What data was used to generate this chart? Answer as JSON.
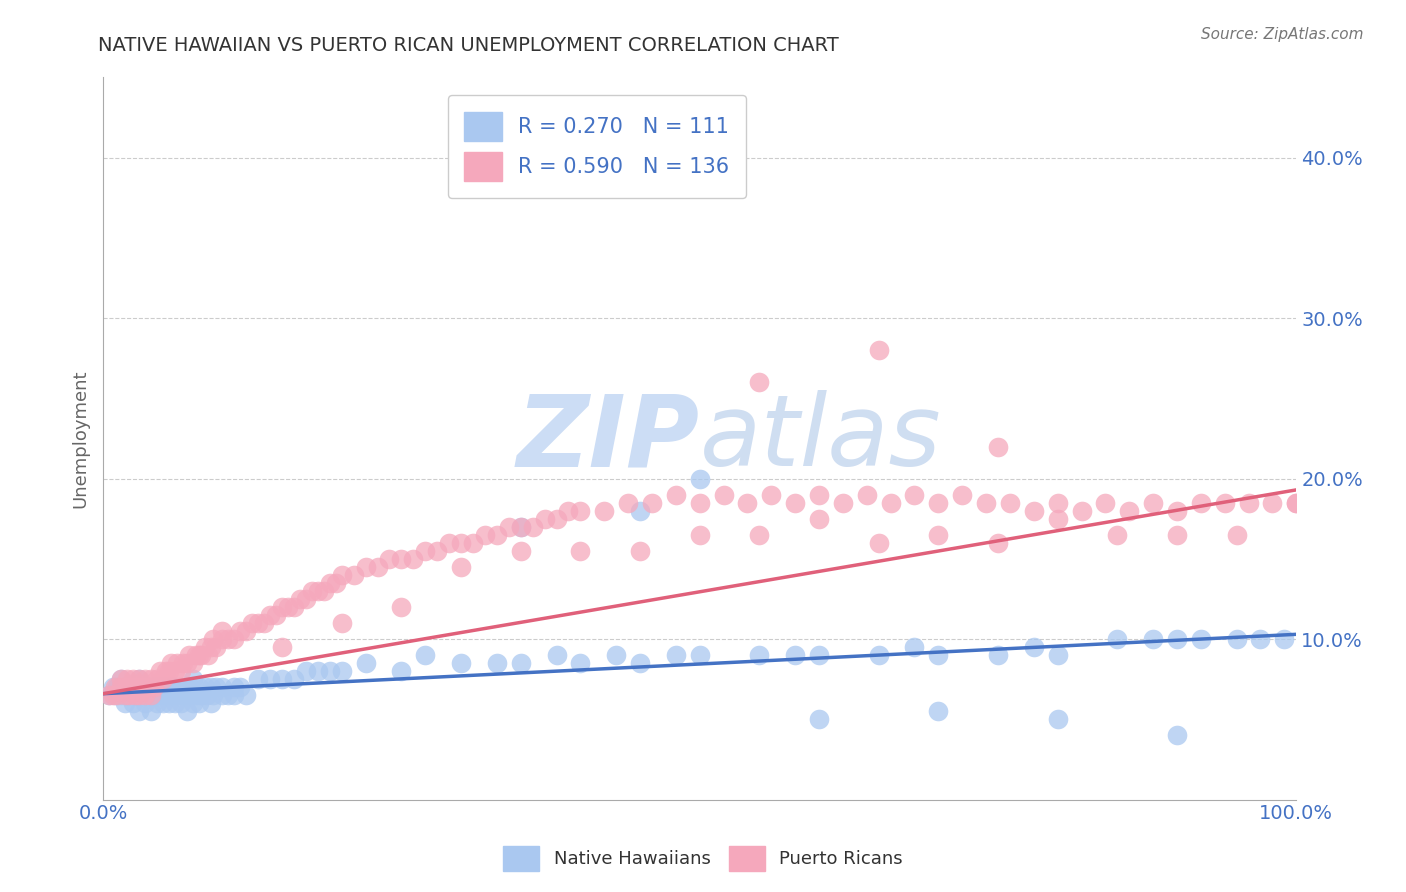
{
  "title": "NATIVE HAWAIIAN VS PUERTO RICAN UNEMPLOYMENT CORRELATION CHART",
  "source": "Source: ZipAtlas.com",
  "ylabel": "Unemployment",
  "xlim": [
    0,
    1.0
  ],
  "ylim": [
    0.0,
    0.45
  ],
  "yticks": [
    0.1,
    0.2,
    0.3,
    0.4
  ],
  "ytick_labels": [
    "10.0%",
    "20.0%",
    "30.0%",
    "40.0%"
  ],
  "xtick_labels": [
    "0.0%",
    "",
    "",
    "",
    "",
    "",
    "",
    "",
    "",
    "",
    "100.0%"
  ],
  "blue_color": "#aac8f0",
  "pink_color": "#f5a8bc",
  "blue_line_color": "#4472c4",
  "pink_line_color": "#e0607a",
  "R_blue": 0.27,
  "N_blue": 111,
  "R_pink": 0.59,
  "N_pink": 136,
  "title_color": "#333333",
  "axis_label_color": "#4472c4",
  "watermark_color": "#ccddf5",
  "blue_line_start_y": 0.066,
  "blue_line_end_y": 0.103,
  "pink_line_start_y": 0.066,
  "pink_line_end_y": 0.193,
  "blue_x": [
    0.005,
    0.008,
    0.01,
    0.012,
    0.015,
    0.015,
    0.018,
    0.02,
    0.02,
    0.022,
    0.025,
    0.025,
    0.027,
    0.03,
    0.03,
    0.03,
    0.032,
    0.033,
    0.035,
    0.035,
    0.038,
    0.04,
    0.04,
    0.042,
    0.043,
    0.045,
    0.045,
    0.047,
    0.048,
    0.05,
    0.05,
    0.052,
    0.053,
    0.055,
    0.055,
    0.057,
    0.058,
    0.06,
    0.06,
    0.062,
    0.063,
    0.065,
    0.065,
    0.067,
    0.068,
    0.07,
    0.07,
    0.072,
    0.073,
    0.075,
    0.075,
    0.078,
    0.08,
    0.08,
    0.082,
    0.085,
    0.087,
    0.09,
    0.09,
    0.092,
    0.095,
    0.1,
    0.1,
    0.105,
    0.11,
    0.11,
    0.115,
    0.12,
    0.13,
    0.14,
    0.15,
    0.16,
    0.17,
    0.18,
    0.19,
    0.2,
    0.22,
    0.25,
    0.27,
    0.3,
    0.33,
    0.35,
    0.38,
    0.4,
    0.43,
    0.45,
    0.48,
    0.5,
    0.55,
    0.58,
    0.6,
    0.65,
    0.68,
    0.7,
    0.75,
    0.78,
    0.8,
    0.85,
    0.88,
    0.9,
    0.92,
    0.95,
    0.97,
    0.99,
    0.5,
    0.45,
    0.35,
    0.6,
    0.7,
    0.8,
    0.9
  ],
  "blue_y": [
    0.065,
    0.07,
    0.065,
    0.07,
    0.065,
    0.075,
    0.06,
    0.065,
    0.07,
    0.065,
    0.06,
    0.07,
    0.065,
    0.055,
    0.065,
    0.075,
    0.065,
    0.07,
    0.06,
    0.07,
    0.065,
    0.055,
    0.07,
    0.065,
    0.07,
    0.06,
    0.07,
    0.065,
    0.07,
    0.06,
    0.07,
    0.065,
    0.07,
    0.06,
    0.07,
    0.065,
    0.07,
    0.06,
    0.07,
    0.065,
    0.07,
    0.06,
    0.07,
    0.065,
    0.07,
    0.055,
    0.07,
    0.065,
    0.07,
    0.06,
    0.075,
    0.065,
    0.06,
    0.07,
    0.065,
    0.07,
    0.065,
    0.06,
    0.07,
    0.065,
    0.07,
    0.065,
    0.07,
    0.065,
    0.07,
    0.065,
    0.07,
    0.065,
    0.075,
    0.075,
    0.075,
    0.075,
    0.08,
    0.08,
    0.08,
    0.08,
    0.085,
    0.08,
    0.09,
    0.085,
    0.085,
    0.085,
    0.09,
    0.085,
    0.09,
    0.085,
    0.09,
    0.09,
    0.09,
    0.09,
    0.09,
    0.09,
    0.095,
    0.09,
    0.09,
    0.095,
    0.09,
    0.1,
    0.1,
    0.1,
    0.1,
    0.1,
    0.1,
    0.1,
    0.2,
    0.18,
    0.17,
    0.05,
    0.055,
    0.05,
    0.04
  ],
  "pink_x": [
    0.005,
    0.008,
    0.01,
    0.012,
    0.015,
    0.015,
    0.018,
    0.02,
    0.02,
    0.022,
    0.025,
    0.025,
    0.027,
    0.03,
    0.03,
    0.032,
    0.035,
    0.035,
    0.038,
    0.04,
    0.04,
    0.043,
    0.045,
    0.048,
    0.05,
    0.053,
    0.055,
    0.057,
    0.06,
    0.062,
    0.065,
    0.067,
    0.07,
    0.072,
    0.075,
    0.078,
    0.08,
    0.082,
    0.085,
    0.088,
    0.09,
    0.092,
    0.095,
    0.1,
    0.1,
    0.105,
    0.11,
    0.115,
    0.12,
    0.125,
    0.13,
    0.135,
    0.14,
    0.145,
    0.15,
    0.155,
    0.16,
    0.165,
    0.17,
    0.175,
    0.18,
    0.185,
    0.19,
    0.195,
    0.2,
    0.21,
    0.22,
    0.23,
    0.24,
    0.25,
    0.26,
    0.27,
    0.28,
    0.29,
    0.3,
    0.31,
    0.32,
    0.33,
    0.34,
    0.35,
    0.36,
    0.37,
    0.38,
    0.39,
    0.4,
    0.42,
    0.44,
    0.46,
    0.48,
    0.5,
    0.52,
    0.54,
    0.56,
    0.58,
    0.6,
    0.62,
    0.64,
    0.66,
    0.68,
    0.7,
    0.72,
    0.74,
    0.76,
    0.78,
    0.8,
    0.82,
    0.84,
    0.86,
    0.88,
    0.9,
    0.92,
    0.94,
    0.96,
    0.98,
    1.0,
    1.0,
    0.5,
    0.6,
    0.7,
    0.8,
    0.9,
    0.45,
    0.55,
    0.65,
    0.75,
    0.85,
    0.95,
    0.35,
    0.4,
    0.3,
    0.25,
    0.2,
    0.15,
    0.55,
    0.65,
    0.75
  ],
  "pink_y": [
    0.065,
    0.065,
    0.07,
    0.065,
    0.07,
    0.075,
    0.065,
    0.07,
    0.075,
    0.065,
    0.07,
    0.075,
    0.065,
    0.065,
    0.075,
    0.07,
    0.065,
    0.075,
    0.07,
    0.065,
    0.075,
    0.07,
    0.075,
    0.08,
    0.075,
    0.08,
    0.08,
    0.085,
    0.08,
    0.085,
    0.08,
    0.085,
    0.085,
    0.09,
    0.085,
    0.09,
    0.09,
    0.09,
    0.095,
    0.09,
    0.095,
    0.1,
    0.095,
    0.1,
    0.105,
    0.1,
    0.1,
    0.105,
    0.105,
    0.11,
    0.11,
    0.11,
    0.115,
    0.115,
    0.12,
    0.12,
    0.12,
    0.125,
    0.125,
    0.13,
    0.13,
    0.13,
    0.135,
    0.135,
    0.14,
    0.14,
    0.145,
    0.145,
    0.15,
    0.15,
    0.15,
    0.155,
    0.155,
    0.16,
    0.16,
    0.16,
    0.165,
    0.165,
    0.17,
    0.17,
    0.17,
    0.175,
    0.175,
    0.18,
    0.18,
    0.18,
    0.185,
    0.185,
    0.19,
    0.185,
    0.19,
    0.185,
    0.19,
    0.185,
    0.19,
    0.185,
    0.19,
    0.185,
    0.19,
    0.185,
    0.19,
    0.185,
    0.185,
    0.18,
    0.185,
    0.18,
    0.185,
    0.18,
    0.185,
    0.18,
    0.185,
    0.185,
    0.185,
    0.185,
    0.185,
    0.185,
    0.165,
    0.175,
    0.165,
    0.175,
    0.165,
    0.155,
    0.165,
    0.16,
    0.16,
    0.165,
    0.165,
    0.155,
    0.155,
    0.145,
    0.12,
    0.11,
    0.095,
    0.26,
    0.28,
    0.22
  ]
}
